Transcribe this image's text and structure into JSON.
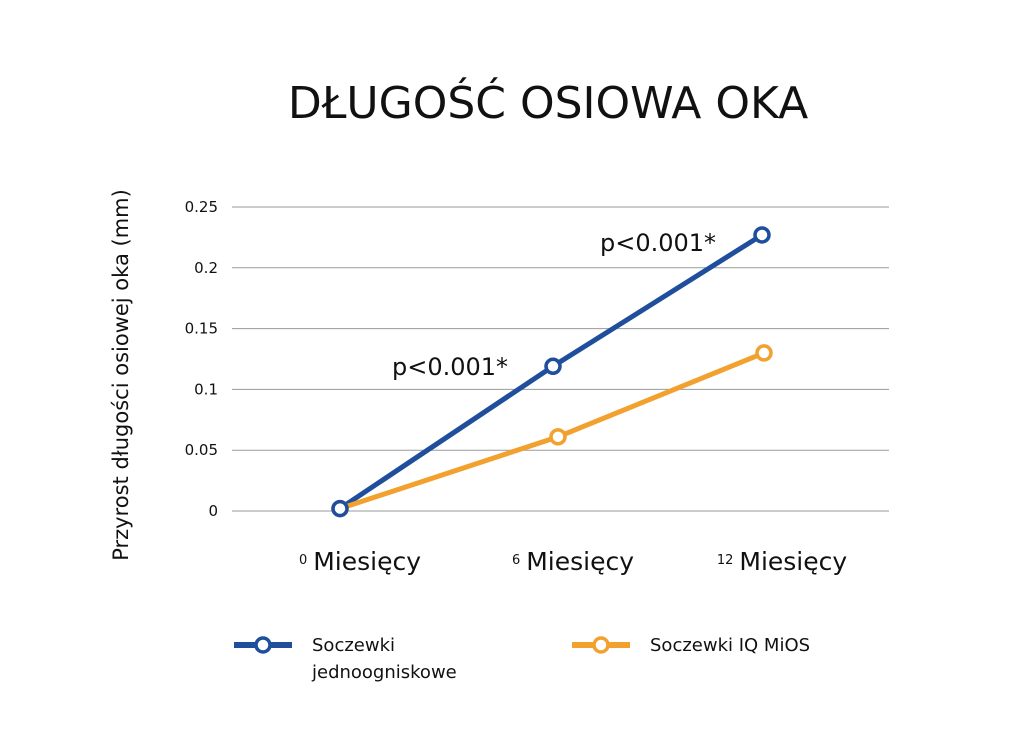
{
  "chart_data": {
    "type": "line",
    "title": "DŁUGOŚĆ OSIOWA OKA",
    "ylabel": "Przyrost długości osiowej oka (mm)",
    "xlabel": "",
    "ylim": [
      0,
      0.25
    ],
    "yticks": [
      "0",
      "0.05",
      "0.1",
      "0.15",
      "0.2",
      "0.25"
    ],
    "categories": [
      {
        "num": "0",
        "word": "Miesięcy"
      },
      {
        "num": "6",
        "word": "Miesięcy"
      },
      {
        "num": "12",
        "word": "Miesięcy"
      }
    ],
    "series": [
      {
        "name_lines": [
          "Soczewki",
          "jednoogniskowe"
        ],
        "color": "#1f4e9c",
        "values": [
          0.002,
          0.119,
          0.227
        ],
        "annotations": [
          {
            "index": 1,
            "text": "p<0.001*"
          },
          {
            "index": 2,
            "text": "p<0.001*"
          }
        ]
      },
      {
        "name_lines": [
          "Soczewki IQ MiOS"
        ],
        "color": "#f2a12e",
        "values": [
          0.002,
          0.061,
          0.13
        ],
        "annotations": []
      }
    ],
    "grid": true,
    "legend_position": "bottom"
  }
}
